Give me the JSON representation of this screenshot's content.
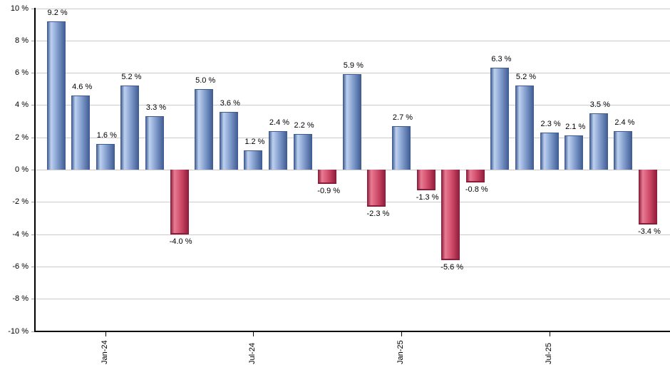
{
  "chart_data": {
    "type": "bar",
    "title": "",
    "unit": "%",
    "values": [
      9.2,
      4.6,
      1.6,
      5.2,
      3.3,
      -4.0,
      5.0,
      3.6,
      1.2,
      2.4,
      2.2,
      -0.9,
      5.9,
      -2.3,
      2.7,
      -1.3,
      -5.6,
      -0.8,
      6.3,
      5.2,
      2.3,
      2.1,
      3.5,
      2.4,
      -3.4
    ],
    "bar_labels": [
      "9.2 %",
      "4.6 %",
      "1.6 %",
      "5.2 %",
      "3.3 %",
      "-4.0 %",
      "5.0 %",
      "3.6 %",
      "1.2 %",
      "2.4 %",
      "2.2 %",
      "-0.9 %",
      "5.9 %",
      "-2.3 %",
      "2.7 %",
      "-1.3 %",
      "-5.6 %",
      "-0.8 %",
      "6.3 %",
      "5.2 %",
      "2.3 %",
      "2.1 %",
      "3.5 %",
      "2.4 %",
      "-3.4 %"
    ],
    "x_axis": {
      "ticks": [
        {
          "label": "Jan-24",
          "bar_index": 2
        },
        {
          "label": "Jul-24",
          "bar_index": 8
        },
        {
          "label": "Jan-25",
          "bar_index": 14
        },
        {
          "label": "Jul-25",
          "bar_index": 20
        }
      ]
    },
    "y_axis": {
      "tick_labels": [
        "10 %",
        "8 %",
        "6 %",
        "4 %",
        "2 %",
        "0 %",
        "-2 %",
        "-4 %",
        "-6 %",
        "-8 %",
        "-10 %"
      ],
      "tick_values": [
        10,
        8,
        6,
        4,
        2,
        0,
        -2,
        -4,
        -6,
        -8,
        -10
      ],
      "range": [
        -10,
        10
      ]
    },
    "grid": true,
    "legend": "none",
    "colors": {
      "positive_edge": "#3d5a91",
      "positive_highlight": "#bdd0ef",
      "positive_base": "#7e9aca",
      "negative_edge": "#8a1b39",
      "negative_highlight": "#e87b93",
      "negative_base": "#cf4a68",
      "gridline": "#cccccc",
      "axis": "#000000",
      "label_text": "#000000"
    }
  }
}
